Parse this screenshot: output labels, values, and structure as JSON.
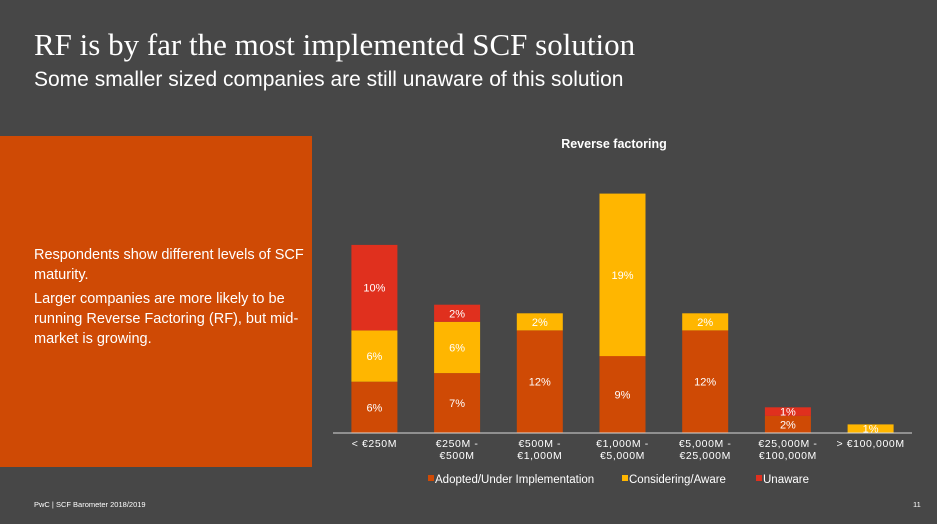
{
  "slide": {
    "title": "RF is by far the most implemented SCF solution",
    "subtitle": "Some smaller sized companies are still unaware of this solution",
    "panel_paragraphs": [
      "Respondents show different levels of SCF maturity.",
      "Larger companies are more likely to be running Reverse Factoring (RF), but mid-market is growing."
    ],
    "footer_source": "PwC | SCF Barometer 2018/2019",
    "page_number": "11",
    "panel_color": "#cf4a05",
    "background_color": "#474747"
  },
  "chart_data": {
    "type": "bar",
    "stacked": true,
    "title": "Reverse factoring",
    "xlabel": "",
    "ylabel": "",
    "ylim": [
      0,
      29
    ],
    "categories": [
      [
        "< €250M"
      ],
      [
        "€250M -",
        "€500M"
      ],
      [
        "€500M -",
        "€1,000M"
      ],
      [
        "€1,000M -",
        "€5,000M"
      ],
      [
        "€5,000M -",
        "€25,000M"
      ],
      [
        "€25,000M -",
        "€100,000M"
      ],
      [
        "> €100,000M"
      ]
    ],
    "series": [
      {
        "name": "Adopted/Under Implementation",
        "color": "#cf4a05",
        "values": [
          6,
          7,
          12,
          9,
          12,
          2,
          0
        ],
        "labels": [
          "6%",
          "7%",
          "12%",
          "9%",
          "12%",
          "2%",
          ""
        ]
      },
      {
        "name": "Considering/Aware",
        "color": "#ffb600",
        "values": [
          6,
          6,
          2,
          19,
          2,
          0,
          1
        ],
        "labels": [
          "6%",
          "6%",
          "2%",
          "19%",
          "2%",
          "",
          "1%"
        ]
      },
      {
        "name": "Unaware",
        "color": "#e0301e",
        "values": [
          10,
          2,
          0,
          0,
          0,
          1,
          0
        ],
        "labels": [
          "10%",
          "2%",
          "",
          "",
          "",
          "1%",
          ""
        ]
      }
    ],
    "grid": false,
    "legend_position": "bottom"
  }
}
